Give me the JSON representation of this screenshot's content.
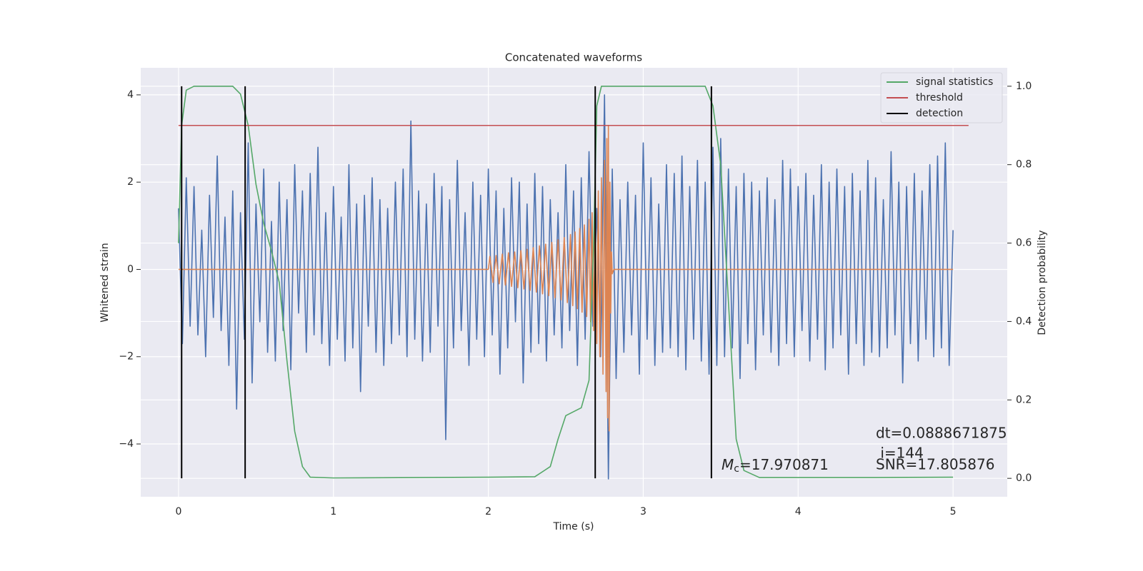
{
  "chart_data": {
    "type": "line",
    "title": "Concatenated waveforms",
    "x_label": "Time (s)",
    "y_label": "Whitened strain",
    "y2_label": "Detection probability",
    "xlim": [
      -0.244,
      5.35
    ],
    "xticks": [
      0,
      1,
      2,
      3,
      4,
      5
    ],
    "ylim": [
      -5.21,
      4.62
    ],
    "yticks": [
      {
        "value": -4,
        "label": "−4"
      },
      {
        "value": -2,
        "label": "−2"
      },
      0,
      2,
      4
    ],
    "y2lim": [
      -0.047,
      1.047
    ],
    "y2ticks": [
      {
        "value": 0,
        "label": "0.0"
      },
      0.2,
      0.4,
      0.6,
      0.8,
      {
        "value": 1,
        "label": "1.0"
      }
    ],
    "grid": true,
    "legend": "upper right",
    "series": [
      {
        "color": "#4c72b0",
        "x": [
          0,
          0.025,
          0.05,
          0.075,
          0.1,
          0.125,
          0.15,
          0.175,
          0.2,
          0.225,
          0.25,
          0.275,
          0.3,
          0.325,
          0.35,
          0.375,
          0.4,
          0.425,
          0.45,
          0.475,
          0.5,
          0.525,
          0.55,
          0.575,
          0.6,
          0.625,
          0.65,
          0.675,
          0.7,
          0.725,
          0.75,
          0.775,
          0.8,
          0.825,
          0.85,
          0.875,
          0.9,
          0.925,
          0.95,
          0.975,
          1,
          1.025,
          1.05,
          1.075,
          1.1,
          1.125,
          1.15,
          1.175,
          1.2,
          1.225,
          1.25,
          1.275,
          1.3,
          1.325,
          1.35,
          1.375,
          1.4,
          1.425,
          1.45,
          1.475,
          1.5,
          1.525,
          1.55,
          1.575,
          1.6,
          1.625,
          1.65,
          1.675,
          1.7,
          1.725,
          1.75,
          1.775,
          1.8,
          1.825,
          1.85,
          1.875,
          1.9,
          1.925,
          1.95,
          1.975,
          2,
          2.025,
          2.05,
          2.075,
          2.1,
          2.125,
          2.15,
          2.175,
          2.2,
          2.225,
          2.25,
          2.275,
          2.3,
          2.325,
          2.35,
          2.375,
          2.4,
          2.425,
          2.45,
          2.475,
          2.5,
          2.525,
          2.55,
          2.575,
          2.6,
          2.625,
          2.65,
          2.675,
          2.7,
          2.725,
          2.75,
          2.775,
          2.8,
          2.825,
          2.85,
          2.875,
          2.9,
          2.925,
          2.95,
          2.975,
          3,
          3.025,
          3.05,
          3.075,
          3.1,
          3.125,
          3.15,
          3.175,
          3.2,
          3.225,
          3.25,
          3.275,
          3.3,
          3.325,
          3.35,
          3.375,
          3.4,
          3.425,
          3.45,
          3.475,
          3.5,
          3.525,
          3.55,
          3.575,
          3.6,
          3.625,
          3.65,
          3.675,
          3.7,
          3.725,
          3.75,
          3.775,
          3.8,
          3.825,
          3.85,
          3.875,
          3.9,
          3.925,
          3.95,
          3.975,
          4,
          4.025,
          4.05,
          4.075,
          4.1,
          4.125,
          4.15,
          4.175,
          4.2,
          4.225,
          4.25,
          4.275,
          4.3,
          4.325,
          4.35,
          4.375,
          4.4,
          4.425,
          4.45,
          4.475,
          4.5,
          4.525,
          4.55,
          4.575,
          4.6,
          4.625,
          4.65,
          4.675,
          4.7,
          4.725,
          4.75,
          4.775,
          4.8,
          4.825,
          4.85,
          4.875,
          4.9,
          4.925,
          4.95,
          4.975,
          5
        ],
        "values": [
          1.4,
          -1.7,
          2.1,
          -1.3,
          1.9,
          -1.5,
          0.9,
          -2.0,
          1.7,
          -1.1,
          2.6,
          -1.4,
          1.2,
          -2.2,
          1.8,
          -3.2,
          1.3,
          -1.6,
          2.9,
          -2.6,
          1.5,
          -1.2,
          2.3,
          -1.9,
          1.1,
          -2.1,
          2.0,
          -1.4,
          1.6,
          -2.3,
          2.4,
          -1.0,
          1.8,
          -1.9,
          2.2,
          -1.5,
          2.8,
          -1.7,
          1.3,
          -2.2,
          1.9,
          -1.6,
          1.2,
          -2.1,
          2.4,
          -1.8,
          1.5,
          -2.8,
          1.7,
          -1.3,
          2.1,
          -1.9,
          1.6,
          -2.2,
          1.4,
          -1.7,
          2.0,
          -1.5,
          2.3,
          -2.0,
          3.4,
          -1.6,
          1.8,
          -2.1,
          1.5,
          -1.9,
          2.2,
          -1.3,
          1.9,
          -3.9,
          1.6,
          -1.8,
          2.5,
          -1.4,
          1.3,
          -2.2,
          2.0,
          -1.6,
          1.7,
          -2.0,
          2.3,
          -1.5,
          1.8,
          -2.4,
          1.4,
          -1.8,
          2.1,
          -1.2,
          2.0,
          -2.6,
          1.5,
          -1.9,
          2.2,
          -1.7,
          1.9,
          -2.1,
          1.6,
          -1.5,
          1.3,
          -1.8,
          2.4,
          -1.4,
          1.8,
          -2.2,
          2.1,
          -1.6,
          2.7,
          -1.3,
          1.4,
          -2.0,
          4.0,
          -4.8,
          2.3,
          -2.5,
          1.6,
          -1.9,
          2.0,
          -1.5,
          1.7,
          -2.4,
          2.9,
          -1.6,
          2.1,
          -2.2,
          1.5,
          -1.9,
          2.4,
          -1.8,
          2.2,
          -2.0,
          2.6,
          -2.3,
          1.9,
          -1.6,
          2.5,
          -2.1,
          2.0,
          -2.4,
          2.8,
          -2.2,
          3.0,
          -2.0,
          2.3,
          -1.8,
          1.9,
          -2.5,
          2.2,
          -1.7,
          2.0,
          -2.3,
          1.8,
          -1.5,
          2.1,
          -1.9,
          1.6,
          -2.2,
          2.5,
          -1.7,
          2.3,
          -2.0,
          1.9,
          -1.4,
          2.2,
          -2.1,
          1.7,
          -1.6,
          2.4,
          -2.3,
          2.0,
          -1.8,
          2.3,
          -1.5,
          1.9,
          -2.4,
          2.2,
          -1.7,
          1.8,
          -2.2,
          2.5,
          -1.9,
          2.1,
          -2.0,
          1.6,
          -1.8,
          2.7,
          -1.5,
          2.0,
          -2.6,
          1.9,
          -1.7,
          2.2,
          -2.1,
          1.8,
          -1.6,
          2.4,
          -2.0,
          2.6,
          -1.8,
          2.9,
          -2.2,
          0.9
        ]
      },
      {
        "color": "#dd8452",
        "x": [
          0,
          2.0,
          2.01,
          2.03,
          2.05,
          2.07,
          2.09,
          2.11,
          2.13,
          2.15,
          2.17,
          2.19,
          2.21,
          2.23,
          2.25,
          2.27,
          2.29,
          2.31,
          2.33,
          2.35,
          2.37,
          2.39,
          2.41,
          2.43,
          2.45,
          2.47,
          2.49,
          2.51,
          2.53,
          2.545,
          2.56,
          2.575,
          2.59,
          2.605,
          2.62,
          2.635,
          2.65,
          2.66,
          2.67,
          2.68,
          2.69,
          2.7,
          2.71,
          2.72,
          2.73,
          2.74,
          2.75,
          2.76,
          2.765,
          2.77,
          2.775,
          2.78,
          2.785,
          2.79,
          2.795,
          2.8,
          2.81,
          5.0
        ],
        "values": [
          0,
          0,
          0.3,
          -0.3,
          0.32,
          -0.33,
          0.35,
          -0.36,
          0.38,
          -0.39,
          0.4,
          -0.42,
          0.43,
          -0.45,
          0.46,
          -0.48,
          0.5,
          -0.52,
          0.54,
          -0.56,
          0.58,
          -0.6,
          0.62,
          -0.65,
          0.68,
          -0.7,
          0.73,
          -0.76,
          0.8,
          -0.83,
          0.86,
          -0.9,
          0.94,
          -0.98,
          1.02,
          -1.08,
          1.15,
          -1.2,
          1.3,
          -1.4,
          1.5,
          -1.7,
          1.8,
          -2.0,
          2.1,
          -2.4,
          2.5,
          -2.8,
          3.0,
          -3.4,
          3.3,
          -3.7,
          2.0,
          -1.0,
          0.4,
          -0.1,
          0,
          0
        ]
      },
      {
        "name": "signal statistics",
        "color": "#55a868",
        "axis": "y2",
        "x": [
          0,
          0.02,
          0.05,
          0.1,
          0.35,
          0.4,
          0.45,
          0.5,
          0.55,
          0.6,
          0.65,
          0.7,
          0.75,
          0.8,
          0.85,
          1.0,
          2.0,
          2.3,
          2.4,
          2.45,
          2.5,
          2.55,
          2.6,
          2.65,
          2.68,
          2.7,
          2.73,
          3.4,
          3.45,
          3.5,
          3.55,
          3.6,
          3.65,
          3.75,
          4.5,
          5.0
        ],
        "values": [
          0.6,
          0.9,
          0.99,
          1.0,
          1.0,
          0.98,
          0.9,
          0.75,
          0.65,
          0.58,
          0.5,
          0.3,
          0.12,
          0.03,
          0.003,
          0.001,
          0.003,
          0.004,
          0.03,
          0.1,
          0.16,
          0.17,
          0.18,
          0.25,
          0.6,
          0.95,
          1.0,
          1.0,
          0.95,
          0.8,
          0.45,
          0.1,
          0.02,
          0.002,
          0.002,
          0.003
        ]
      },
      {
        "name": "threshold",
        "color": "#c44e52",
        "axis": "y2",
        "x": [
          0,
          5.1
        ],
        "values": [
          0.9,
          0.9
        ]
      },
      {
        "name": "detection",
        "color": "#000000",
        "axis": "y2",
        "x": [
          0.02,
          0.02,
          null,
          0.43,
          0.43,
          null,
          2.69,
          2.69,
          null,
          3.44,
          3.44
        ],
        "values": [
          0,
          1,
          null,
          0,
          1,
          null,
          0,
          1,
          null,
          0,
          1
        ]
      }
    ],
    "annotations": {
      "dt": "dt=0.0888671875",
      "i": " i=144",
      "snr": "SNR=17.805876",
      "mc": {
        "symbol": "M",
        "subscript": "c",
        "text": "=17.970871"
      }
    }
  }
}
